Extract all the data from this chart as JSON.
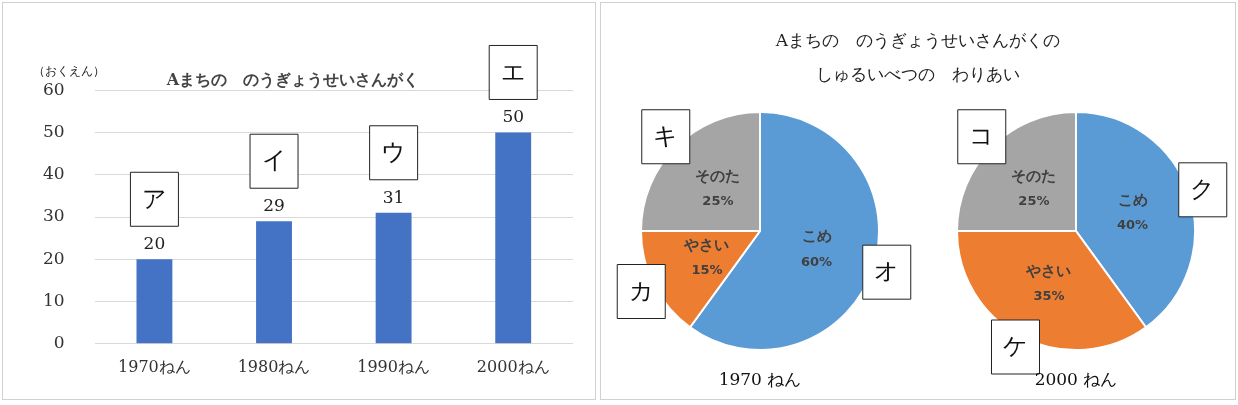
{
  "chart_data": [
    {
      "type": "bar",
      "title": "Aまちの　のうぎょうせいさんがく",
      "ylabel": "（おくえん）",
      "categories": [
        "1970ねん",
        "1980ねん",
        "1990ねん",
        "2000ねん"
      ],
      "values": [
        20,
        29,
        31,
        50
      ],
      "color": "#4472c4",
      "ylim": [
        0,
        60
      ],
      "yticks": [
        0,
        10,
        20,
        30,
        40,
        50,
        60
      ],
      "grid": "y",
      "data_labels": true,
      "legend": false,
      "annotations": [
        {
          "text": "ア",
          "x": "1970ねん",
          "y": 20
        },
        {
          "text": "イ",
          "x": "1980ねん",
          "y": 29
        },
        {
          "text": "ウ",
          "x": "1990ねん",
          "y": 31
        },
        {
          "text": "エ",
          "x": "2000ねん",
          "y": 50
        }
      ]
    },
    {
      "type": "pie",
      "title": "Aまちの　のうぎょうせいさんがくの",
      "subtitle": "しゅるいべつの　わりあい",
      "categories": [
        "こめ",
        "やさい",
        "そのた"
      ],
      "values": [
        60,
        15,
        25
      ],
      "value_labels": [
        "60%",
        "15%",
        "25%"
      ],
      "colors": [
        "#5b9bd5",
        "#ed7d31",
        "#a5a5a5"
      ],
      "legend": false,
      "annotations": [
        {
          "text": "オ",
          "x": "こめ"
        },
        {
          "text": "カ",
          "x": "やさい"
        },
        {
          "text": "キ",
          "x": "そのた"
        },
        "1970 ねん"
      ]
    },
    {
      "type": "pie",
      "categories": [
        "こめ",
        "やさい",
        "そのた"
      ],
      "values": [
        40,
        35,
        25
      ],
      "value_labels": [
        "40%",
        "35%",
        "25%"
      ],
      "colors": [
        "#5b9bd5",
        "#ed7d31",
        "#a5a5a5"
      ],
      "legend": false,
      "annotations": [
        {
          "text": "ク",
          "x": "こめ"
        },
        {
          "text": "ケ",
          "x": "やさい"
        },
        {
          "text": "コ",
          "x": "そのた"
        },
        "2000 ねん"
      ]
    }
  ]
}
